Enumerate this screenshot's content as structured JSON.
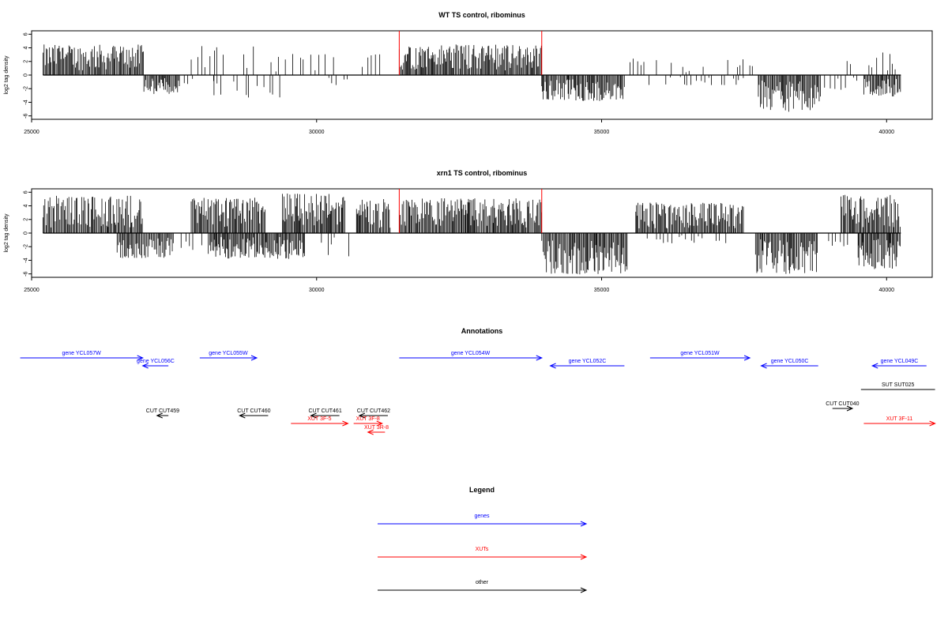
{
  "colors": {
    "gene": "#0000ff",
    "xut": "#ff0000",
    "other": "#000000",
    "marker": "#ff0000",
    "bar": "#000000"
  },
  "chart_data": [
    {
      "type": "bar",
      "title": "WT TS control, ribominus",
      "ylabel": "log2 tag density",
      "xlim": [
        25000,
        40800
      ],
      "ylim": [
        -6.5,
        6.5
      ],
      "x_ticks": [
        "25000",
        "30000",
        "35000",
        "40000"
      ],
      "y_ticks": [
        "6",
        "4",
        "2",
        "0",
        "-2",
        "-4",
        "-6"
      ],
      "markers_x": [
        31450,
        33950
      ],
      "baseline_range": [
        25200,
        40250
      ],
      "segments": [
        {
          "x0": 25200,
          "x1": 26970,
          "sign": 1,
          "max": 4.5
        },
        {
          "x0": 26970,
          "x1": 27600,
          "sign": -1,
          "max": 2.8
        },
        {
          "x0": 27600,
          "x1": 28200,
          "sign": -1,
          "max": 2.0,
          "sparse": true
        },
        {
          "x0": 27800,
          "x1": 29000,
          "sign": 1,
          "max": 4.5,
          "sparse": true
        },
        {
          "x0": 28200,
          "x1": 29500,
          "sign": -1,
          "max": 3.3,
          "sparse": true
        },
        {
          "x0": 29200,
          "x1": 30300,
          "sign": 1,
          "max": 3.2,
          "sparse": true
        },
        {
          "x0": 30100,
          "x1": 30600,
          "sign": -1,
          "max": 1.5,
          "sparse": true
        },
        {
          "x0": 30800,
          "x1": 31250,
          "sign": 1,
          "max": 3.3,
          "sparse": true
        },
        {
          "x0": 31450,
          "x1": 33950,
          "sign": 1,
          "max": 4.5
        },
        {
          "x0": 33950,
          "x1": 35400,
          "sign": -1,
          "max": 3.8
        },
        {
          "x0": 35500,
          "x1": 37700,
          "sign": 1,
          "max": 2.6,
          "sparse": true
        },
        {
          "x0": 35700,
          "x1": 37500,
          "sign": -1,
          "max": 1.5,
          "sparse": true
        },
        {
          "x0": 37750,
          "x1": 38850,
          "sign": -1,
          "max": 5.4
        },
        {
          "x0": 38850,
          "x1": 39500,
          "sign": -1,
          "max": 2.2,
          "sparse": true
        },
        {
          "x0": 39200,
          "x1": 40250,
          "sign": 1,
          "max": 3.5,
          "sparse": true
        },
        {
          "x0": 39600,
          "x1": 40250,
          "sign": -1,
          "max": 3.2
        }
      ]
    },
    {
      "type": "bar",
      "title": "xrn1 TS control, ribominus",
      "ylabel": "log2 tag density",
      "xlim": [
        25000,
        40800
      ],
      "ylim": [
        -6.5,
        6.5
      ],
      "x_ticks": [
        "25000",
        "30000",
        "35000",
        "40000"
      ],
      "y_ticks": [
        "6",
        "4",
        "2",
        "0",
        "-2",
        "-4",
        "-6"
      ],
      "markers_x": [
        31450,
        33950
      ],
      "baseline_range": [
        25200,
        40250
      ],
      "segments": [
        {
          "x0": 25200,
          "x1": 26950,
          "sign": 1,
          "max": 5.5
        },
        {
          "x0": 26500,
          "x1": 27500,
          "sign": -1,
          "max": 3.7
        },
        {
          "x0": 27400,
          "x1": 28100,
          "sign": -1,
          "max": 3.0,
          "sparse": true
        },
        {
          "x0": 27800,
          "x1": 29100,
          "sign": 1,
          "max": 5.2
        },
        {
          "x0": 28100,
          "x1": 29800,
          "sign": -1,
          "max": 3.8
        },
        {
          "x0": 29400,
          "x1": 30500,
          "sign": 1,
          "max": 6.0
        },
        {
          "x0": 30000,
          "x1": 30600,
          "sign": -1,
          "max": 3.5,
          "sparse": true
        },
        {
          "x0": 30700,
          "x1": 31300,
          "sign": 1,
          "max": 5.0
        },
        {
          "x0": 31450,
          "x1": 33950,
          "sign": 1,
          "max": 5.2
        },
        {
          "x0": 33950,
          "x1": 35450,
          "sign": -1,
          "max": 6.2
        },
        {
          "x0": 35600,
          "x1": 37500,
          "sign": 1,
          "max": 4.5
        },
        {
          "x0": 35800,
          "x1": 37400,
          "sign": -1,
          "max": 1.5,
          "sparse": true
        },
        {
          "x0": 37700,
          "x1": 38800,
          "sign": -1,
          "max": 6.0
        },
        {
          "x0": 38800,
          "x1": 39600,
          "sign": -1,
          "max": 2.0,
          "sparse": true
        },
        {
          "x0": 39200,
          "x1": 40250,
          "sign": 1,
          "max": 5.6
        },
        {
          "x0": 39500,
          "x1": 40250,
          "sign": -1,
          "max": 5.3
        }
      ]
    }
  ],
  "annotations": {
    "title": "Annotations",
    "items": [
      {
        "label": "gene YCL057W",
        "type": "gene",
        "start": 24800,
        "end": 26950,
        "dir": "right",
        "row": 0
      },
      {
        "label": "gene YCL056C",
        "type": "gene",
        "start": 26950,
        "end": 27400,
        "dir": "left",
        "row": 1
      },
      {
        "label": "gene YCL055W",
        "type": "gene",
        "start": 27950,
        "end": 28950,
        "dir": "right",
        "row": 0
      },
      {
        "label": "gene YCL054W",
        "type": "gene",
        "start": 31450,
        "end": 33950,
        "dir": "right",
        "row": 0
      },
      {
        "label": "gene YCL052C",
        "type": "gene",
        "start": 34100,
        "end": 35400,
        "dir": "left",
        "row": 1
      },
      {
        "label": "gene YCL051W",
        "type": "gene",
        "start": 35850,
        "end": 37600,
        "dir": "right",
        "row": 0
      },
      {
        "label": "gene YCL050C",
        "type": "gene",
        "start": 37800,
        "end": 38800,
        "dir": "left",
        "row": 1
      },
      {
        "label": "gene YCL049C",
        "type": "gene",
        "start": 39750,
        "end": 40700,
        "dir": "left",
        "row": 1
      },
      {
        "label": "SUT SUT025",
        "type": "other",
        "start": 39550,
        "end": 40850,
        "dir": "none",
        "row": 3
      },
      {
        "label": "CUT CUT040",
        "type": "other",
        "start": 39050,
        "end": 39400,
        "dir": "right",
        "row": 4
      },
      {
        "label": "CUT CUT459",
        "type": "other",
        "start": 27200,
        "end": 27400,
        "dir": "left",
        "row": 5
      },
      {
        "label": "CUT CUT460",
        "type": "other",
        "start": 28650,
        "end": 29150,
        "dir": "left",
        "row": 5
      },
      {
        "label": "CUT CUT461",
        "type": "other",
        "start": 29900,
        "end": 30400,
        "dir": "left",
        "row": 5
      },
      {
        "label": "CUT CUT462",
        "type": "other",
        "start": 30750,
        "end": 31250,
        "dir": "left",
        "row": 5
      },
      {
        "label": "XUT 3F-5",
        "type": "xut",
        "start": 29550,
        "end": 30550,
        "dir": "right",
        "row": 6
      },
      {
        "label": "XUT 3F-8",
        "type": "xut",
        "start": 30650,
        "end": 31150,
        "dir": "right",
        "row": 6
      },
      {
        "label": "XUT 3R-8",
        "type": "xut",
        "start": 30900,
        "end": 31200,
        "dir": "left",
        "row": 7
      },
      {
        "label": "XUT 3F-11",
        "type": "xut",
        "start": 39600,
        "end": 40850,
        "dir": "right",
        "row": 6
      }
    ]
  },
  "legend": {
    "title": "Legend",
    "items": [
      {
        "label": "genes",
        "type": "gene"
      },
      {
        "label": "XUTs",
        "type": "xut"
      },
      {
        "label": "other",
        "type": "other"
      }
    ]
  }
}
